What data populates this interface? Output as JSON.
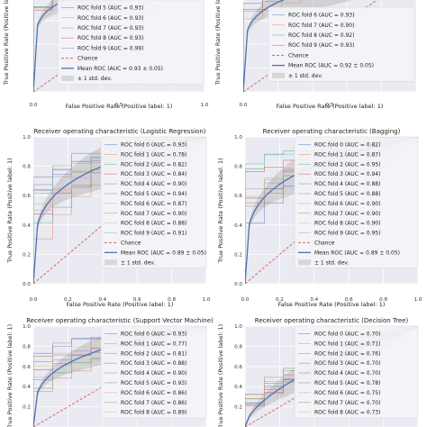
{
  "chart_data": [
    {
      "type": "line",
      "title": "",
      "xlabel": "False Positive Rate (Positive label: 1)",
      "ylabel": "True Positive Rate (Positive label: 1)",
      "xticks": [
        "0.0",
        "0.5",
        "1.0"
      ],
      "yticks": [],
      "xlim": [
        0,
        1
      ],
      "ylim": [
        0,
        1
      ],
      "legend": [
        "ROC fold 5 (AUC = 0.93)",
        "ROC fold 6 (AUC = 0.93)",
        "ROC fold 7 (AUC = 0.93)",
        "ROC fold 8 (AUC = 0.93)",
        "ROC fold 9 (AUC = 0.99)",
        "Chance",
        "Mean ROC (AUC = 0.93 ± 0.05)",
        "± 1 std. dev."
      ],
      "legend_position": "lower-right",
      "folds": [
        0.93,
        0.93,
        0.93,
        0.93,
        0.99
      ],
      "mean_auc": 0.93
    },
    {
      "type": "line",
      "title": "",
      "xlabel": "False Positive Rate (Positive label: 1)",
      "ylabel": "True Positive Rate (Positive label: 1)",
      "xticks": [
        "0.0",
        "0.5"
      ],
      "yticks": [],
      "xlim": [
        0,
        1
      ],
      "ylim": [
        0,
        1
      ],
      "legend": [
        "ROC fold 6 (AUC = 0.93)",
        "ROC fold 7 (AUC = 0.90)",
        "ROC fold 8 (AUC = 0.92)",
        "ROC fold 9 (AUC = 0.93)",
        "Chance",
        "Mean ROC (AUC = 0.92 ± 0.05)",
        "± 1 std. dev."
      ],
      "legend_position": "lower-right",
      "folds": [
        0.93,
        0.9,
        0.92,
        0.93
      ],
      "mean_auc": 0.92
    },
    {
      "type": "line",
      "title": "Receiver operating characteristic (Logistic Regression)",
      "xlabel": "False Positive Rate (Positive label: 1)",
      "ylabel": "True Positive Rate (Positive label: 1)",
      "xticks": [
        "0.0",
        "0.2",
        "0.4",
        "0.6",
        "0.8",
        "1.0"
      ],
      "yticks": [
        "0.0",
        "0.2",
        "0.4",
        "0.6",
        "0.8",
        "1.0"
      ],
      "xlim": [
        0,
        1
      ],
      "ylim": [
        0,
        1
      ],
      "legend": [
        "ROC fold 0 (AUC = 0.93)",
        "ROC fold 1 (AUC = 0.78)",
        "ROC fold 2 (AUC = 0.82)",
        "ROC fold 3 (AUC = 0.84)",
        "ROC fold 4 (AUC = 0.90)",
        "ROC fold 5 (AUC = 0.94)",
        "ROC fold 6 (AUC = 0.87)",
        "ROC fold 7 (AUC = 0.90)",
        "ROC fold 8 (AUC = 0.88)",
        "ROC fold 9 (AUC = 0.91)",
        "Chance",
        "Mean ROC (AUC = 0.89 ± 0.05)",
        "± 1 std. dev."
      ],
      "legend_position": "right",
      "folds": [
        0.93,
        0.78,
        0.82,
        0.84,
        0.9,
        0.94,
        0.87,
        0.9,
        0.88,
        0.91
      ],
      "mean_auc": 0.89
    },
    {
      "type": "line",
      "title": "Receiver operating characteristic (Bagging)",
      "xlabel": "False Positive Rate (Positive label: 1)",
      "ylabel": "True Positive Rate (Positive label: 1)",
      "xticks": [
        "0.0",
        "0.2",
        "0.4",
        "0.6",
        "0.8",
        "1.0"
      ],
      "yticks": [
        "0.0",
        "0.2",
        "0.4",
        "0.6",
        "0.8",
        "1.0"
      ],
      "xlim": [
        0,
        1
      ],
      "ylim": [
        0,
        1
      ],
      "legend": [
        "ROC fold 0 (AUC = 0.82)",
        "ROC fold 1 (AUC = 0.87)",
        "ROC fold 2 (AUC = 0.95)",
        "ROC fold 3 (AUC = 0.94)",
        "ROC fold 4 (AUC = 0.88)",
        "ROC fold 5 (AUC = 0.88)",
        "ROC fold 6 (AUC = 0.90)",
        "ROC fold 7 (AUC = 0.90)",
        "ROC fold 8 (AUC = 0.90)",
        "ROC fold 9 (AUC = 0.95)",
        "Chance",
        "Mean ROC (AUC = 0.89 ± 0.05)",
        "± 1 std. dev."
      ],
      "legend_position": "right",
      "folds": [
        0.82,
        0.87,
        0.95,
        0.94,
        0.88,
        0.88,
        0.9,
        0.9,
        0.9,
        0.95
      ],
      "mean_auc": 0.89
    },
    {
      "type": "line",
      "title": "Receiver operating characteristic (Support Vector Machine)",
      "xlabel": "",
      "ylabel": "True Positive Rate (Positive label: 1)",
      "xticks": [],
      "yticks": [
        "0.2",
        "0.4",
        "0.6",
        "0.8",
        "1.0"
      ],
      "xlim": [
        0,
        1
      ],
      "ylim": [
        0,
        1
      ],
      "legend": [
        "ROC fold 0 (AUC = 0.93)",
        "ROC fold 1 (AUC = 0.77)",
        "ROC fold 2 (AUC = 0.81)",
        "ROC fold 3 (AUC = 0.88)",
        "ROC fold 4 (AUC = 0.90)",
        "ROC fold 5 (AUC = 0.93)",
        "ROC fold 6 (AUC = 0.86)",
        "ROC fold 7 (AUC = 0.86)",
        "ROC fold 8 (AUC = 0.89)"
      ],
      "legend_position": "right",
      "folds": [
        0.93,
        0.77,
        0.81,
        0.88,
        0.9,
        0.93,
        0.86,
        0.86,
        0.89
      ],
      "mean_auc": null
    },
    {
      "type": "line",
      "title": "Receiver operating characteristic (Decision Tree)",
      "xlabel": "",
      "ylabel": "True Positive Rate (Positive label: 1)",
      "xticks": [],
      "yticks": [
        "0.2",
        "0.4",
        "0.6",
        "0.8",
        "1.0"
      ],
      "xlim": [
        0,
        1
      ],
      "ylim": [
        0,
        1
      ],
      "legend": [
        "ROC fold 0 (AUC = 0.70)",
        "ROC fold 1 (AUC = 0.71)",
        "ROC fold 2 (AUC = 0.76)",
        "ROC fold 3 (AUC = 0.70)",
        "ROC fold 4 (AUC = 0.70)",
        "ROC fold 5 (AUC = 0.78)",
        "ROC fold 6 (AUC = 0.75)",
        "ROC fold 7 (AUC = 0.70)",
        "ROC fold 8 (AUC = 0.73)"
      ],
      "legend_position": "right",
      "folds": [
        0.7,
        0.71,
        0.76,
        0.7,
        0.7,
        0.78,
        0.75,
        0.7,
        0.73
      ],
      "mean_auc": null
    }
  ],
  "colors": {
    "panel": "#eaeaf2",
    "mean": "#4c72b0",
    "chance": "#e07070",
    "band": "#a0a0a0",
    "folds": [
      "#4c72b0",
      "#dd8452",
      "#55a868",
      "#c44e52",
      "#8172b3",
      "#937860",
      "#da8bc3",
      "#8c8c8c",
      "#ccb974",
      "#64b5cd"
    ]
  }
}
